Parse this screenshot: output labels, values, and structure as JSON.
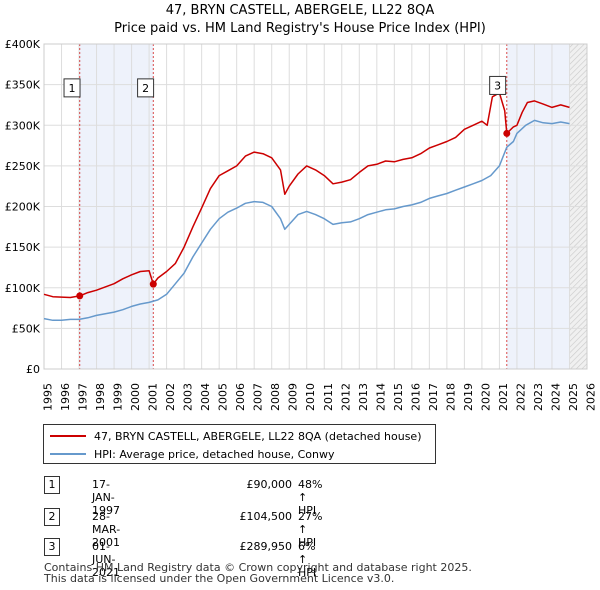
{
  "header": {
    "title": "47, BRYN CASTELL, ABERGELE, LL22 8QA",
    "subtitle": "Price paid vs. HM Land Registry's House Price Index (HPI)"
  },
  "legend": {
    "items": [
      {
        "label": "47, BRYN CASTELL, ABERGELE, LL22 8QA (detached house)",
        "color": "#cc0000"
      },
      {
        "label": "HPI: Average price, detached house, Conwy",
        "color": "#6699cc"
      }
    ]
  },
  "transactions": [
    {
      "num": "1",
      "date": "17-JAN-1997",
      "price": "£90,000",
      "hpi": "48% ↑ HPI"
    },
    {
      "num": "2",
      "date": "28-MAR-2001",
      "price": "£104,500",
      "hpi": "27% ↑ HPI"
    },
    {
      "num": "3",
      "date": "01-JUN-2021",
      "price": "£289,950",
      "hpi": "6% ↑ HPI"
    }
  ],
  "footer": {
    "line1": "Contains HM Land Registry data © Crown copyright and database right 2025.",
    "line2": "This data is licensed under the Open Government Licence v3.0."
  },
  "chart_data": {
    "type": "line",
    "title": "47, BRYN CASTELL, ABERGELE, LL22 8QA",
    "subtitle": "Price paid vs. HM Land Registry's House Price Index (HPI)",
    "xlabel": "",
    "ylabel": "",
    "xlim": [
      1995,
      2026
    ],
    "ylim": [
      0,
      400000
    ],
    "xticks": [
      1995,
      1996,
      1997,
      1998,
      1999,
      2000,
      2001,
      2002,
      2003,
      2004,
      2005,
      2006,
      2007,
      2008,
      2009,
      2010,
      2011,
      2012,
      2013,
      2014,
      2015,
      2016,
      2017,
      2018,
      2019,
      2020,
      2021,
      2022,
      2023,
      2024,
      2025,
      2026
    ],
    "yticks": [
      {
        "value": 0,
        "label": "£0"
      },
      {
        "value": 50000,
        "label": "£50K"
      },
      {
        "value": 100000,
        "label": "£100K"
      },
      {
        "value": 150000,
        "label": "£150K"
      },
      {
        "value": 200000,
        "label": "£200K"
      },
      {
        "value": 250000,
        "label": "£250K"
      },
      {
        "value": 300000,
        "label": "£300K"
      },
      {
        "value": 350000,
        "label": "£350K"
      },
      {
        "value": 400000,
        "label": "£400K"
      }
    ],
    "grid": true,
    "shaded_regions": [
      {
        "from": 1997.04,
        "to": 2001.24,
        "color": "#eef2fb"
      },
      {
        "from": 2021.42,
        "to": 2025.0,
        "color": "#eef2fb"
      },
      {
        "from": 2025.0,
        "to": 2026.0,
        "color": "#f0f0f0",
        "hatched": true
      }
    ],
    "series": [
      {
        "name": "47, BRYN CASTELL, ABERGELE, LL22 8QA (detached house)",
        "color": "#cc0000",
        "points": [
          [
            1995.0,
            92000
          ],
          [
            1995.5,
            89000
          ],
          [
            1996.0,
            88500
          ],
          [
            1996.5,
            88000
          ],
          [
            1997.04,
            90000
          ],
          [
            1997.5,
            94000
          ],
          [
            1998.0,
            97000
          ],
          [
            1998.5,
            101000
          ],
          [
            1999.0,
            105000
          ],
          [
            1999.5,
            111000
          ],
          [
            2000.0,
            116000
          ],
          [
            2000.5,
            120000
          ],
          [
            2001.0,
            121000
          ],
          [
            2001.24,
            104500
          ],
          [
            2001.5,
            112000
          ],
          [
            2002.0,
            120000
          ],
          [
            2002.5,
            130000
          ],
          [
            2003.0,
            150000
          ],
          [
            2003.5,
            175000
          ],
          [
            2004.0,
            198000
          ],
          [
            2004.5,
            222000
          ],
          [
            2005.0,
            238000
          ],
          [
            2005.5,
            244000
          ],
          [
            2006.0,
            250000
          ],
          [
            2006.5,
            262000
          ],
          [
            2007.0,
            267000
          ],
          [
            2007.5,
            265000
          ],
          [
            2008.0,
            260000
          ],
          [
            2008.5,
            245000
          ],
          [
            2008.75,
            215000
          ],
          [
            2009.0,
            225000
          ],
          [
            2009.5,
            240000
          ],
          [
            2010.0,
            250000
          ],
          [
            2010.5,
            245000
          ],
          [
            2011.0,
            238000
          ],
          [
            2011.5,
            228000
          ],
          [
            2012.0,
            230000
          ],
          [
            2012.5,
            233000
          ],
          [
            2013.0,
            242000
          ],
          [
            2013.5,
            250000
          ],
          [
            2014.0,
            252000
          ],
          [
            2014.5,
            256000
          ],
          [
            2015.0,
            255000
          ],
          [
            2015.5,
            258000
          ],
          [
            2016.0,
            260000
          ],
          [
            2016.5,
            265000
          ],
          [
            2017.0,
            272000
          ],
          [
            2017.5,
            276000
          ],
          [
            2018.0,
            280000
          ],
          [
            2018.5,
            285000
          ],
          [
            2019.0,
            295000
          ],
          [
            2019.5,
            300000
          ],
          [
            2020.0,
            305000
          ],
          [
            2020.3,
            300000
          ],
          [
            2020.6,
            335000
          ],
          [
            2021.0,
            340000
          ],
          [
            2021.3,
            318000
          ],
          [
            2021.42,
            289950
          ],
          [
            2021.8,
            298000
          ],
          [
            2022.0,
            300000
          ],
          [
            2022.3,
            316000
          ],
          [
            2022.6,
            328000
          ],
          [
            2023.0,
            330000
          ],
          [
            2023.5,
            326000
          ],
          [
            2024.0,
            322000
          ],
          [
            2024.5,
            325000
          ],
          [
            2025.0,
            322000
          ]
        ]
      },
      {
        "name": "HPI: Average price, detached house, Conwy",
        "color": "#6699cc",
        "points": [
          [
            1995.0,
            62000
          ],
          [
            1995.5,
            60000
          ],
          [
            1996.0,
            60000
          ],
          [
            1996.5,
            61000
          ],
          [
            1997.0,
            61000
          ],
          [
            1997.5,
            63000
          ],
          [
            1998.0,
            66000
          ],
          [
            1998.5,
            68000
          ],
          [
            1999.0,
            70000
          ],
          [
            1999.5,
            73000
          ],
          [
            2000.0,
            77000
          ],
          [
            2000.5,
            80000
          ],
          [
            2001.0,
            82000
          ],
          [
            2001.5,
            85000
          ],
          [
            2002.0,
            92000
          ],
          [
            2002.5,
            105000
          ],
          [
            2003.0,
            118000
          ],
          [
            2003.5,
            138000
          ],
          [
            2004.0,
            155000
          ],
          [
            2004.5,
            172000
          ],
          [
            2005.0,
            185000
          ],
          [
            2005.5,
            193000
          ],
          [
            2006.0,
            198000
          ],
          [
            2006.5,
            204000
          ],
          [
            2007.0,
            206000
          ],
          [
            2007.5,
            205000
          ],
          [
            2008.0,
            200000
          ],
          [
            2008.5,
            185000
          ],
          [
            2008.75,
            172000
          ],
          [
            2009.0,
            178000
          ],
          [
            2009.5,
            190000
          ],
          [
            2010.0,
            194000
          ],
          [
            2010.5,
            190000
          ],
          [
            2011.0,
            185000
          ],
          [
            2011.5,
            178000
          ],
          [
            2012.0,
            180000
          ],
          [
            2012.5,
            181000
          ],
          [
            2013.0,
            185000
          ],
          [
            2013.5,
            190000
          ],
          [
            2014.0,
            193000
          ],
          [
            2014.5,
            196000
          ],
          [
            2015.0,
            197000
          ],
          [
            2015.5,
            200000
          ],
          [
            2016.0,
            202000
          ],
          [
            2016.5,
            205000
          ],
          [
            2017.0,
            210000
          ],
          [
            2017.5,
            213000
          ],
          [
            2018.0,
            216000
          ],
          [
            2018.5,
            220000
          ],
          [
            2019.0,
            224000
          ],
          [
            2019.5,
            228000
          ],
          [
            2020.0,
            232000
          ],
          [
            2020.5,
            238000
          ],
          [
            2021.0,
            250000
          ],
          [
            2021.42,
            273000
          ],
          [
            2021.8,
            280000
          ],
          [
            2022.0,
            290000
          ],
          [
            2022.5,
            300000
          ],
          [
            2023.0,
            306000
          ],
          [
            2023.5,
            303000
          ],
          [
            2024.0,
            302000
          ],
          [
            2024.5,
            304000
          ],
          [
            2025.0,
            302000
          ]
        ]
      }
    ],
    "sales": [
      {
        "label": "1",
        "x": 1997.04,
        "y": 90000
      },
      {
        "label": "2",
        "x": 2001.24,
        "y": 104500
      },
      {
        "label": "3",
        "x": 2021.42,
        "y": 289950
      }
    ],
    "annotations": [
      {
        "label": "1",
        "x": 1996.6,
        "y": 346000
      },
      {
        "label": "2",
        "x": 2000.8,
        "y": 346000
      },
      {
        "label": "3",
        "x": 2020.9,
        "y": 349000
      }
    ]
  }
}
